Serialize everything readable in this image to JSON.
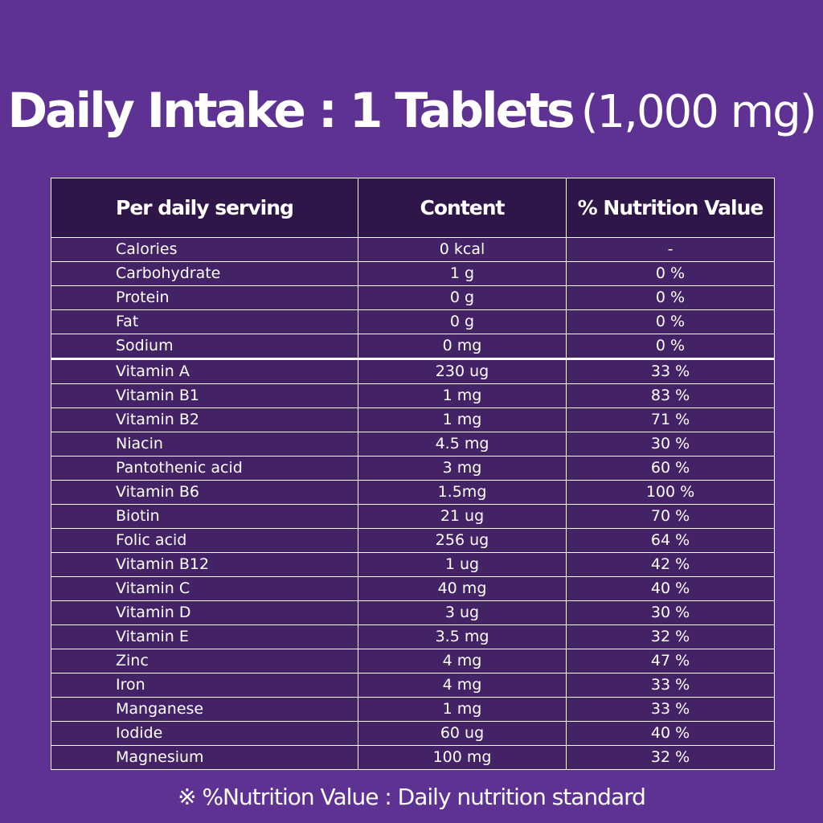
{
  "title": {
    "bold": "Daily Intake : 1 Tablets",
    "light": "(1,000 mg)"
  },
  "table": {
    "headers": [
      "Per daily serving",
      "Content",
      "% Nutrition Value"
    ],
    "rows": [
      {
        "name": "Calories",
        "content": "0 kcal",
        "value": "-"
      },
      {
        "name": "Carbohydrate",
        "content": "1 g",
        "value": "0 %"
      },
      {
        "name": "Protein",
        "content": "0 g",
        "value": "0 %"
      },
      {
        "name": "Fat",
        "content": "0 g",
        "value": "0 %"
      },
      {
        "name": "Sodium",
        "content": "0 mg",
        "value": "0 %"
      },
      {
        "name": "Vitamin A",
        "content": "230 ug",
        "value": "33 %"
      },
      {
        "name": "Vitamin B1",
        "content": "1 mg",
        "value": "83 %"
      },
      {
        "name": "Vitamin B2",
        "content": "1 mg",
        "value": "71 %"
      },
      {
        "name": "Niacin",
        "content": "4.5 mg",
        "value": "30 %"
      },
      {
        "name": "Pantothenic acid",
        "content": "3 mg",
        "value": "60 %"
      },
      {
        "name": "Vitamin B6",
        "content": "1.5mg",
        "value": "100 %"
      },
      {
        "name": "Biotin",
        "content": "21 ug",
        "value": "70 %"
      },
      {
        "name": "Folic acid",
        "content": "256 ug",
        "value": "64 %"
      },
      {
        "name": "Vitamin B12",
        "content": "1 ug",
        "value": "42 %"
      },
      {
        "name": "Vitamin C",
        "content": "40 mg",
        "value": "40 %"
      },
      {
        "name": "Vitamin D",
        "content": "3 ug",
        "value": "30 %"
      },
      {
        "name": "Vitamin E",
        "content": "3.5 mg",
        "value": "32 %"
      },
      {
        "name": "Zinc",
        "content": "4 mg",
        "value": "47 %"
      },
      {
        "name": "Iron",
        "content": "4 mg",
        "value": "33 %"
      },
      {
        "name": "Manganese",
        "content": "1 mg",
        "value": "33 %"
      },
      {
        "name": "Iodide",
        "content": "60 ug",
        "value": "40 %"
      },
      {
        "name": "Magnesium",
        "content": "100 mg",
        "value": "32 %"
      }
    ]
  },
  "footnote": "※ %Nutrition Value : Daily nutrition standard",
  "colors": {
    "background": "#5e3292",
    "table_body": "#432266",
    "table_header": "#2f1648",
    "text": "#ffffff"
  }
}
